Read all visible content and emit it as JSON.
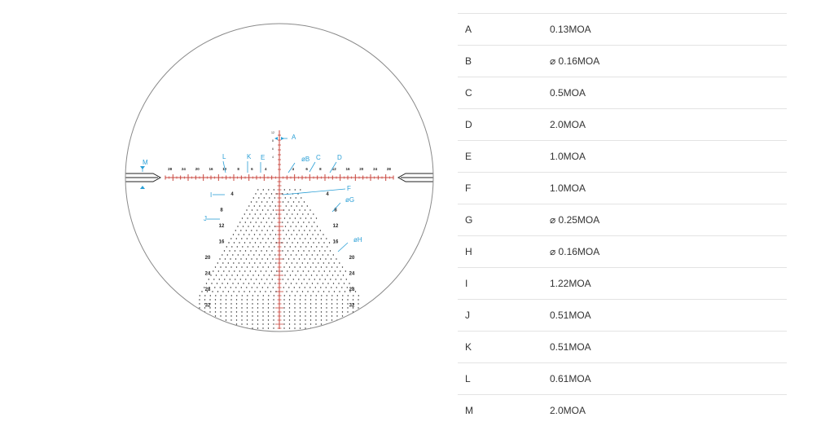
{
  "reticle": {
    "colors": {
      "outline": "#8a8a8a",
      "red": "#c8443c",
      "dark": "#222222",
      "callout": "#2a9fd6"
    },
    "top_numbers": [
      "12",
      "8",
      "6",
      "4"
    ],
    "left_numbers": [
      "4",
      "8",
      "12",
      "16",
      "20",
      "24",
      "28",
      "32"
    ],
    "right_numbers": [
      "4",
      "8",
      "12",
      "16",
      "20",
      "24",
      "28",
      "32"
    ],
    "horizontal_numbers": [
      "28",
      "24",
      "20",
      "16",
      "12",
      "8",
      "6",
      "4",
      "4",
      "6",
      "8",
      "12",
      "16",
      "20",
      "24",
      "28"
    ],
    "callouts": [
      "A",
      "B",
      "C",
      "D",
      "E",
      "F",
      "G",
      "H",
      "I",
      "J",
      "K",
      "L",
      "M"
    ]
  },
  "table": {
    "rows": [
      {
        "key": "A",
        "value": "0.13MOA"
      },
      {
        "key": "B",
        "value": "⌀ 0.16MOA"
      },
      {
        "key": "C",
        "value": "0.5MOA"
      },
      {
        "key": "D",
        "value": "2.0MOA"
      },
      {
        "key": "E",
        "value": "1.0MOA"
      },
      {
        "key": "F",
        "value": "1.0MOA"
      },
      {
        "key": "G",
        "value": "⌀ 0.25MOA"
      },
      {
        "key": "H",
        "value": "⌀ 0.16MOA"
      },
      {
        "key": "I",
        "value": "1.22MOA"
      },
      {
        "key": "J",
        "value": "0.51MOA"
      },
      {
        "key": "K",
        "value": "0.51MOA"
      },
      {
        "key": "L",
        "value": "0.61MOA"
      },
      {
        "key": "M",
        "value": "2.0MOA"
      }
    ]
  }
}
